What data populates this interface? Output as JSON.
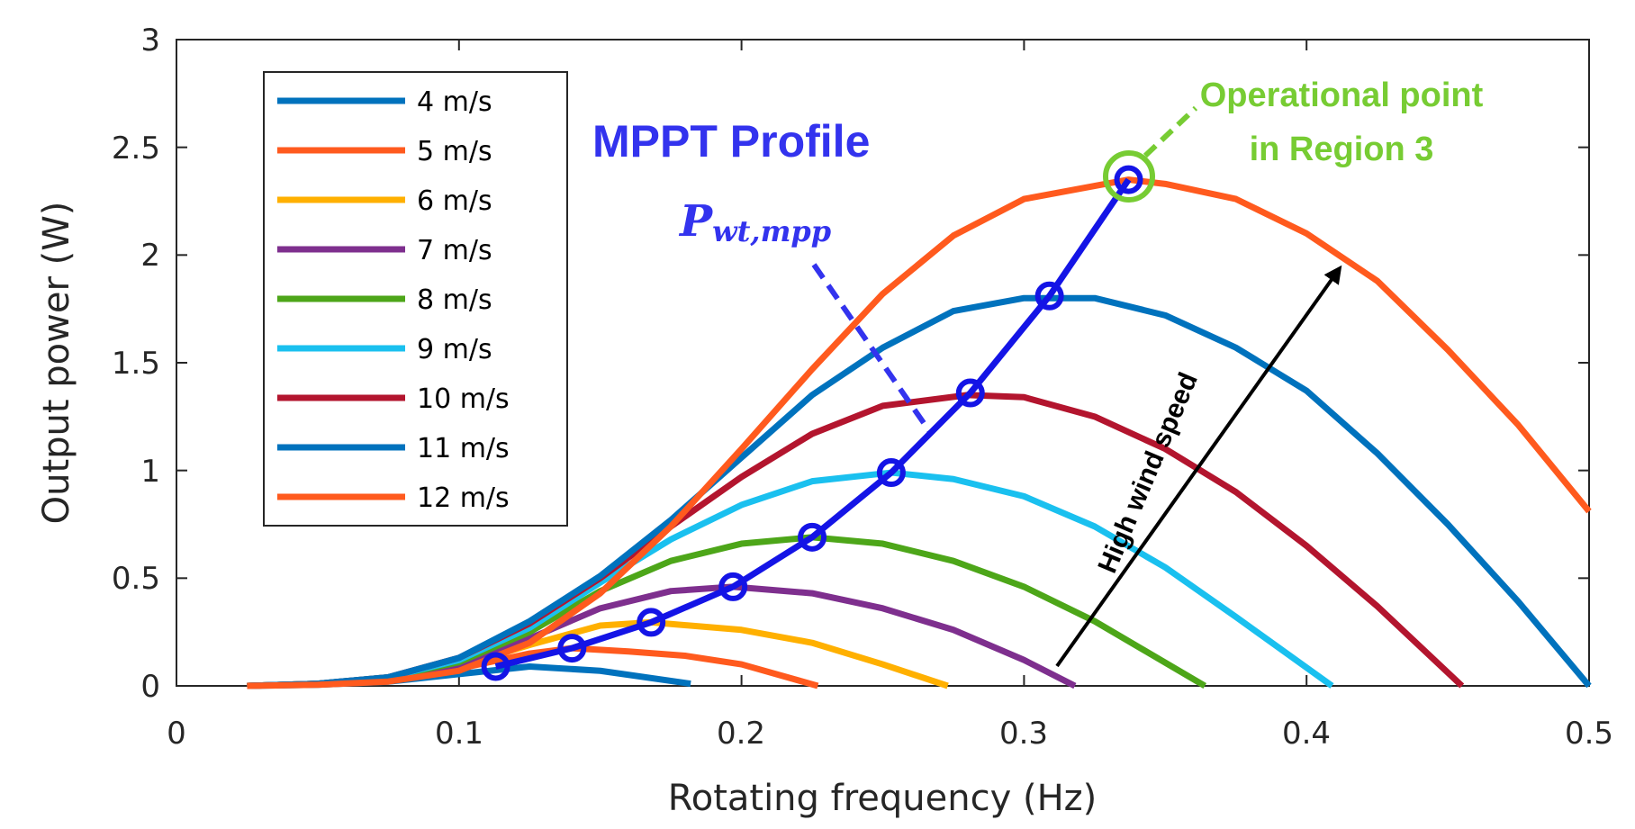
{
  "chart_data": {
    "type": "line",
    "title": "",
    "xlabel": "Rotating frequency (Hz)",
    "ylabel": "Output power (W)",
    "xlim": [
      0,
      0.5
    ],
    "ylim": [
      0,
      3
    ],
    "xticks": [
      "0",
      "0.1",
      "0.2",
      "0.3",
      "0.4",
      "0.5"
    ],
    "yticks": [
      "0",
      "0.5",
      "1",
      "1.5",
      "2",
      "2.5",
      "3"
    ],
    "grid": false,
    "legend_position": "top-left",
    "series": [
      {
        "name": "4 m/s",
        "color": "#0072BD",
        "x": [
          0.025,
          0.05,
          0.075,
          0.1,
          0.125,
          0.15,
          0.182
        ],
        "y": [
          0.0,
          0.005,
          0.02,
          0.055,
          0.09,
          0.07,
          0.01
        ]
      },
      {
        "name": "5 m/s",
        "color": "#FF5A1E",
        "x": [
          0.025,
          0.05,
          0.075,
          0.1,
          0.125,
          0.14,
          0.16,
          0.18,
          0.2,
          0.227
        ],
        "y": [
          0.0,
          0.01,
          0.03,
          0.08,
          0.15,
          0.175,
          0.16,
          0.14,
          0.1,
          0.0
        ]
      },
      {
        "name": "6 m/s",
        "color": "#FFB000",
        "x": [
          0.025,
          0.05,
          0.075,
          0.1,
          0.125,
          0.15,
          0.168,
          0.2,
          0.225,
          0.25,
          0.273
        ],
        "y": [
          0.0,
          0.01,
          0.03,
          0.09,
          0.19,
          0.28,
          0.295,
          0.26,
          0.2,
          0.1,
          0.0
        ]
      },
      {
        "name": "7 m/s",
        "color": "#7E2F8E",
        "x": [
          0.025,
          0.05,
          0.075,
          0.1,
          0.125,
          0.15,
          0.175,
          0.197,
          0.225,
          0.25,
          0.275,
          0.3,
          0.318
        ],
        "y": [
          0.0,
          0.01,
          0.03,
          0.1,
          0.22,
          0.36,
          0.44,
          0.46,
          0.43,
          0.36,
          0.26,
          0.12,
          0.0
        ]
      },
      {
        "name": "8 m/s",
        "color": "#4DA619",
        "x": [
          0.025,
          0.05,
          0.075,
          0.1,
          0.125,
          0.15,
          0.175,
          0.2,
          0.225,
          0.25,
          0.275,
          0.3,
          0.325,
          0.364
        ],
        "y": [
          0.0,
          0.01,
          0.04,
          0.11,
          0.25,
          0.44,
          0.58,
          0.66,
          0.69,
          0.66,
          0.58,
          0.46,
          0.3,
          0.0
        ]
      },
      {
        "name": "9 m/s",
        "color": "#1AC0EF",
        "x": [
          0.025,
          0.05,
          0.075,
          0.1,
          0.125,
          0.15,
          0.175,
          0.2,
          0.225,
          0.253,
          0.275,
          0.3,
          0.325,
          0.35,
          0.375,
          0.409
        ],
        "y": [
          0.0,
          0.01,
          0.04,
          0.12,
          0.27,
          0.48,
          0.68,
          0.84,
          0.95,
          0.99,
          0.96,
          0.88,
          0.74,
          0.55,
          0.32,
          0.0
        ]
      },
      {
        "name": "10 m/s",
        "color": "#B3152E",
        "x": [
          0.025,
          0.05,
          0.075,
          0.1,
          0.125,
          0.15,
          0.175,
          0.2,
          0.225,
          0.25,
          0.28,
          0.3,
          0.325,
          0.35,
          0.375,
          0.4,
          0.425,
          0.455
        ],
        "y": [
          0.0,
          0.01,
          0.04,
          0.13,
          0.29,
          0.5,
          0.74,
          0.97,
          1.17,
          1.3,
          1.35,
          1.34,
          1.25,
          1.1,
          0.9,
          0.65,
          0.37,
          0.0
        ]
      },
      {
        "name": "11 m/s",
        "color": "#0072BD",
        "x": [
          0.025,
          0.05,
          0.075,
          0.1,
          0.125,
          0.15,
          0.175,
          0.2,
          0.225,
          0.25,
          0.275,
          0.3,
          0.325,
          0.35,
          0.375,
          0.4,
          0.425,
          0.45,
          0.475,
          0.5
        ],
        "y": [
          0.0,
          0.01,
          0.04,
          0.13,
          0.3,
          0.51,
          0.77,
          1.06,
          1.35,
          1.57,
          1.74,
          1.8,
          1.8,
          1.72,
          1.57,
          1.37,
          1.08,
          0.75,
          0.39,
          0.0
        ]
      },
      {
        "name": "12 m/s",
        "color": "#FF5A1E",
        "x": [
          0.025,
          0.05,
          0.075,
          0.1,
          0.125,
          0.15,
          0.175,
          0.2,
          0.225,
          0.25,
          0.275,
          0.3,
          0.337,
          0.35,
          0.375,
          0.4,
          0.425,
          0.45,
          0.475,
          0.5
        ],
        "y": [
          0.0,
          0.005,
          0.02,
          0.07,
          0.2,
          0.43,
          0.74,
          1.1,
          1.47,
          1.82,
          2.09,
          2.26,
          2.35,
          2.33,
          2.26,
          2.1,
          1.88,
          1.56,
          1.21,
          0.81
        ]
      }
    ],
    "mppt": {
      "name": "MPPT Profile",
      "color": "#1414E6",
      "x": [
        0.113,
        0.14,
        0.168,
        0.197,
        0.225,
        0.253,
        0.281,
        0.309,
        0.337
      ],
      "y": [
        0.09,
        0.175,
        0.295,
        0.46,
        0.69,
        0.99,
        1.36,
        1.81,
        2.35
      ]
    }
  },
  "annotations": {
    "mppt_title": "MPPT Profile",
    "mppt_symbol_main": "P",
    "mppt_symbol_sub": "wt,mpp",
    "operational_line1": "Operational point",
    "operational_line2": "in Region 3",
    "arrow_label": "High wind speed",
    "mppt_color": "#3333EE",
    "operational_color": "#77CC33",
    "arrow_color": "#000000"
  }
}
